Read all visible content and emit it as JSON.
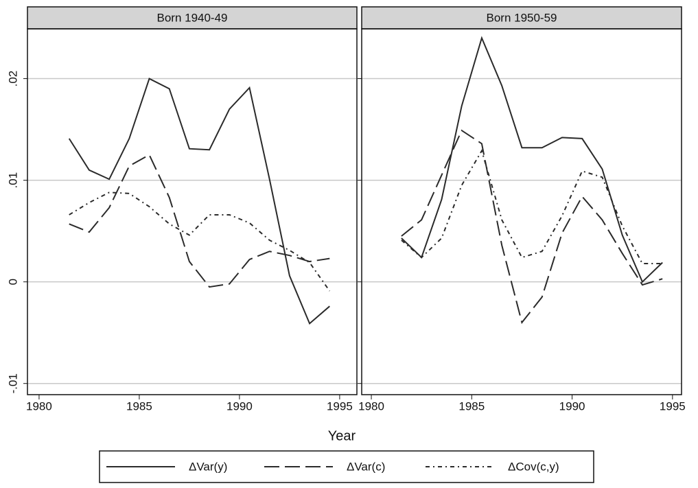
{
  "xlabel": "Year",
  "chart_data": [
    {
      "type": "line",
      "title": "Born 1940-49",
      "x": [
        1981.5,
        1982.5,
        1983.5,
        1984.5,
        1985.5,
        1986.5,
        1987.5,
        1988.5,
        1989.5,
        1990.5,
        1991.5,
        1992.5,
        1993.5,
        1994.5
      ],
      "series": [
        {
          "name": "ΔVar(y)",
          "color": "#2a2a2a",
          "linestyle": "solid",
          "values": [
            0.0141,
            0.011,
            0.0101,
            0.0141,
            0.02,
            0.019,
            0.0131,
            0.013,
            0.017,
            0.0191,
            0.0101,
            0.0006,
            -0.0041,
            -0.0024
          ]
        },
        {
          "name": "ΔVar(c)",
          "color": "#2a2a2a",
          "linestyle": "dashed",
          "values": [
            0.0057,
            0.0049,
            0.0073,
            0.0114,
            0.0125,
            0.0083,
            0.002,
            -0.0005,
            -0.0002,
            0.0022,
            0.003,
            0.0026,
            0.002,
            0.0023
          ]
        },
        {
          "name": "ΔCov(c,y)",
          "color": "#2a2a2a",
          "linestyle": "dashdot",
          "values": [
            0.0066,
            0.0078,
            0.0088,
            0.0087,
            0.0074,
            0.0057,
            0.0046,
            0.0066,
            0.0066,
            0.0058,
            0.0041,
            0.0031,
            0.0019,
            -0.0009
          ]
        }
      ],
      "xlim": [
        1979.42,
        1995.86
      ],
      "xticks": [
        1980,
        1985,
        1990,
        1995
      ],
      "ylim": [
        -0.0111,
        0.0249
      ],
      "yticks": [
        {
          "value": -0.01,
          "label": "-.01"
        },
        0,
        {
          "value": 0.01,
          "label": ".01"
        },
        {
          "value": 0.02,
          "label": ".02"
        }
      ],
      "grid": true
    },
    {
      "type": "line",
      "title": "Born 1950-59",
      "x": [
        1981.5,
        1982.5,
        1983.5,
        1984.5,
        1985.5,
        1986.5,
        1987.5,
        1988.5,
        1989.5,
        1990.5,
        1991.5,
        1992.5,
        1993.5,
        1994.5
      ],
      "series": [
        {
          "name": "ΔVar(y)",
          "color": "#2a2a2a",
          "linestyle": "solid",
          "values": [
            0.0043,
            0.0024,
            0.0081,
            0.0173,
            0.024,
            0.0193,
            0.0132,
            0.0132,
            0.0142,
            0.0141,
            0.0111,
            0.0046,
            0,
            0.0019
          ]
        },
        {
          "name": "ΔVar(c)",
          "color": "#2a2a2a",
          "linestyle": "dashed",
          "values": [
            0.0045,
            0.0061,
            0.0105,
            0.0149,
            0.0136,
            0.0036,
            -0.004,
            -0.0015,
            0.0048,
            0.0084,
            0.0061,
            0.0028,
            -0.0003,
            0.0003
          ]
        },
        {
          "name": "ΔCov(c,y)",
          "color": "#2a2a2a",
          "linestyle": "dashdot",
          "values": [
            0.0041,
            0.0024,
            0.0043,
            0.0095,
            0.0129,
            0.0061,
            0.0024,
            0.003,
            0.0065,
            0.0109,
            0.0103,
            0.0055,
            0.0018,
            0.0018
          ]
        }
      ],
      "xlim": [
        1979.52,
        1995.45
      ],
      "xticks": [
        1980,
        1985,
        1990,
        1995
      ],
      "ylim": [
        -0.0111,
        0.0249
      ],
      "yticks": [
        {
          "value": -0.01,
          "label": "-.01"
        },
        0,
        {
          "value": 0.01,
          "label": ".01"
        },
        {
          "value": 0.02,
          "label": ".02"
        }
      ],
      "grid": true
    }
  ]
}
